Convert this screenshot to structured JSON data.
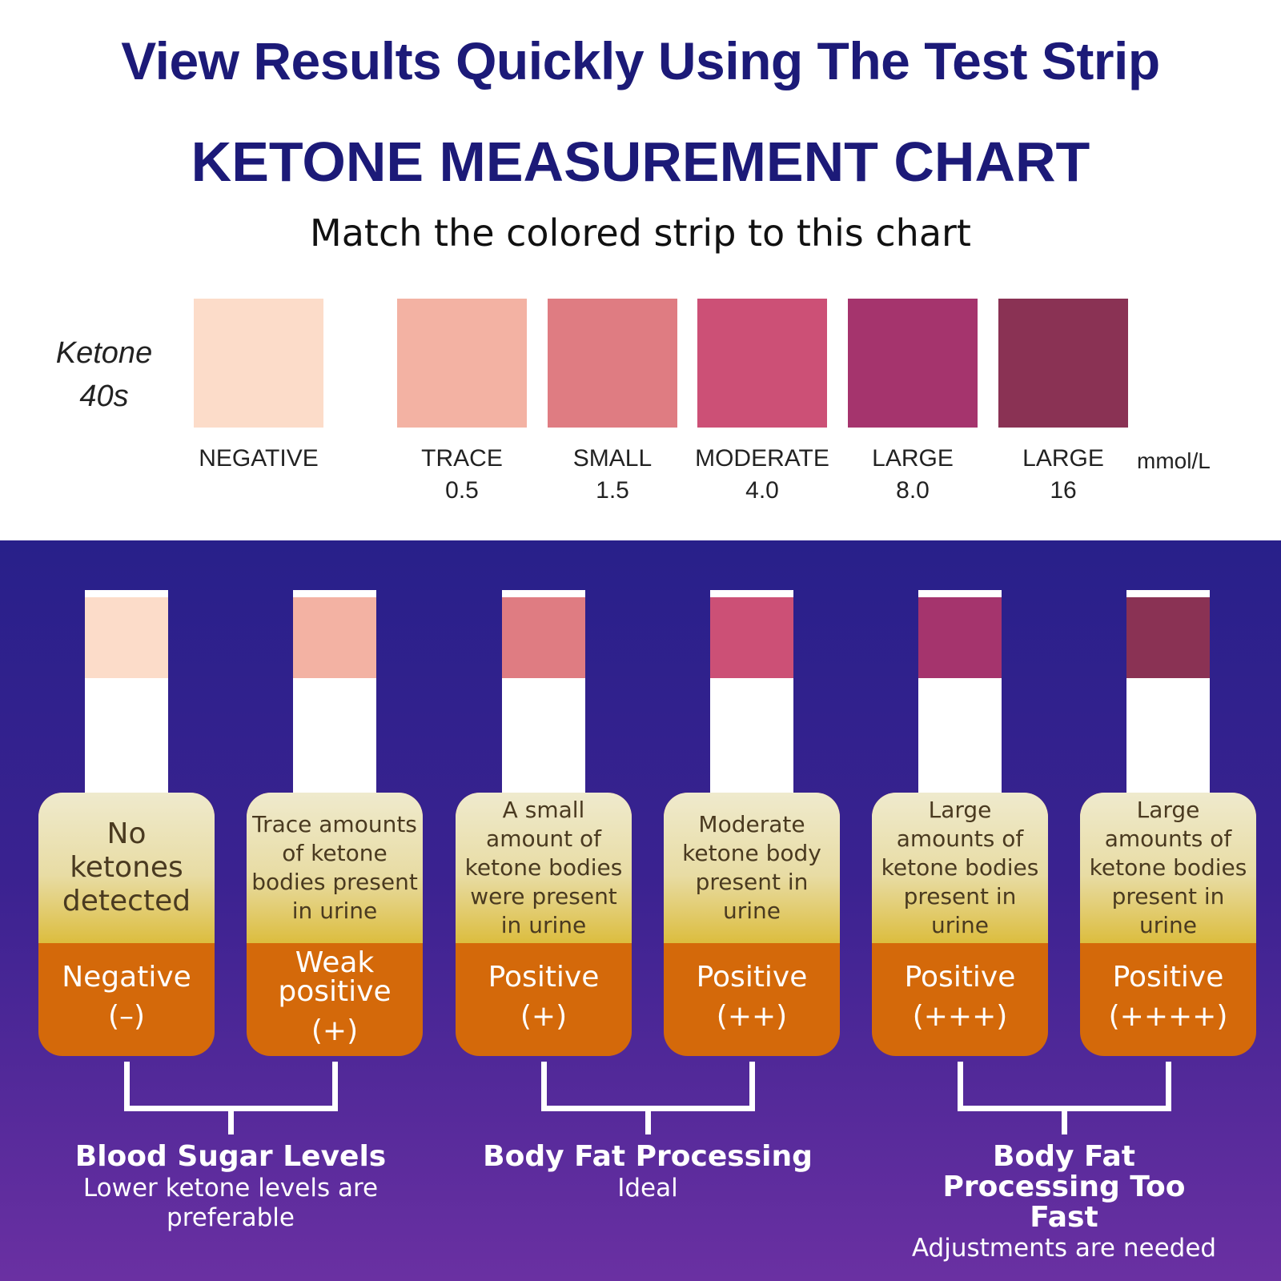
{
  "header": {
    "title": "View Results Quickly Using The Test Strip",
    "subtitle": "KETONE MEASUREMENT CHART",
    "instruction": "Match the colored strip to this chart"
  },
  "chart": {
    "label": [
      "Ketone",
      "40s"
    ],
    "unit": "mmol/L",
    "levels": [
      {
        "name": "NEGATIVE",
        "color": "#fcdcc9"
      },
      {
        "name": "TRACE",
        "value": "0.5",
        "color": "#f3b2a3"
      },
      {
        "name": "SMALL",
        "value": "1.5",
        "color": "#df7c82"
      },
      {
        "name": "MODERATE",
        "value": "4.0",
        "color": "#cc5076"
      },
      {
        "name": "LARGE",
        "value": "8.0",
        "color": "#a5346d"
      },
      {
        "name": "LARGE",
        "value": "16",
        "color": "#8a3254"
      }
    ]
  },
  "strips": [
    {
      "description": "No ketones detected",
      "result": "Negative",
      "sign": "(–)"
    },
    {
      "description": "Trace amounts of ketone bodies present in urine",
      "result": "Weak positive",
      "sign": "(+)"
    },
    {
      "description": "A small amount of ketone bodies were present in urine",
      "result": "Positive",
      "sign": "(+)"
    },
    {
      "description": "Moderate ketone body present in urine",
      "result": "Positive",
      "sign": "(++)"
    },
    {
      "description": "Large amounts of ketone bodies present in urine",
      "result": "Positive",
      "sign": "(+++)"
    },
    {
      "description": "Large amounts of ketone bodies present in urine",
      "result": "Positive",
      "sign": "(++++)"
    }
  ],
  "groups": [
    {
      "title": "Blood Sugar Levels",
      "note": "Lower ketone levels are preferable"
    },
    {
      "title": "Body Fat Processing",
      "note": "Ideal"
    },
    {
      "title": "Body Fat Processing Too Fast",
      "note": "Adjustments are needed"
    }
  ]
}
